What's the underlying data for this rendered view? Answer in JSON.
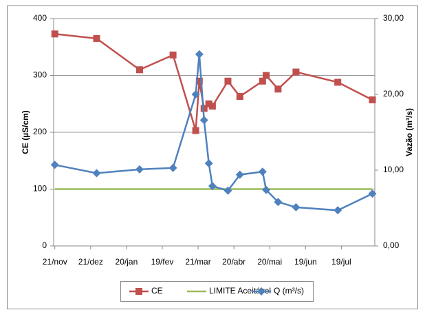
{
  "chart_data": {
    "type": "line",
    "y_label": "CE (µS/cm)",
    "y2_label": "Vazão (m³/s)",
    "x": [
      0,
      35,
      71,
      99,
      118,
      121,
      125,
      129,
      132,
      145,
      155,
      174,
      177,
      187,
      202,
      237,
      266
    ],
    "xlim": [
      -1,
      268
    ],
    "xticks": [
      {
        "value": 0,
        "label": "21/nov"
      },
      {
        "value": 30,
        "label": "21/dez"
      },
      {
        "value": 60,
        "label": "20/jan"
      },
      {
        "value": 90,
        "label": "19/fev"
      },
      {
        "value": 120,
        "label": "21/mar"
      },
      {
        "value": 150,
        "label": "20/abr"
      },
      {
        "value": 180,
        "label": "20/mai"
      },
      {
        "value": 210,
        "label": "19/jun"
      },
      {
        "value": 240,
        "label": "19/jul"
      }
    ],
    "ylim": [
      0,
      400
    ],
    "yticks": [
      0,
      100,
      200,
      300,
      400
    ],
    "y2lim": [
      0,
      30
    ],
    "y2ticks": [
      {
        "value": 0,
        "label": "0,00"
      },
      {
        "value": 10,
        "label": "10,00"
      },
      {
        "value": 20,
        "label": "20,00"
      },
      {
        "value": 30,
        "label": "30,00"
      }
    ],
    "grid": true,
    "legend": "bottom",
    "series": [
      {
        "name": "CE",
        "color": "#c0504d",
        "marker": "square",
        "values": [
          373,
          365,
          310,
          336,
          203,
          290,
          242,
          250,
          246,
          290,
          263,
          290,
          300,
          276,
          306,
          288,
          257
        ]
      },
      {
        "name": "LIMITE Aceitável",
        "color": "#9bbb59",
        "marker": "none",
        "values": [
          100,
          100,
          100,
          100,
          100,
          100,
          100,
          100,
          100,
          100,
          100,
          100,
          100,
          100,
          100,
          100,
          100
        ]
      },
      {
        "name": "Q (m³/s)",
        "color": "#4f81bd",
        "marker": "diamond",
        "axis": "y2",
        "values": [
          10.7,
          9.6,
          10.1,
          10.3,
          20.0,
          25.3,
          16.6,
          10.9,
          7.9,
          7.3,
          9.4,
          9.8,
          7.4,
          5.8,
          5.1,
          4.7,
          6.9
        ]
      }
    ]
  }
}
